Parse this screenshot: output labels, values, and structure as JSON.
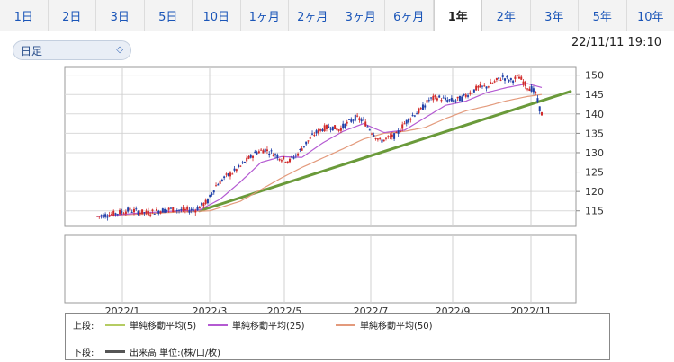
{
  "tabs": [
    {
      "label": "1日",
      "active": false
    },
    {
      "label": "2日",
      "active": false
    },
    {
      "label": "3日",
      "active": false
    },
    {
      "label": "5日",
      "active": false
    },
    {
      "label": "10日",
      "active": false
    },
    {
      "label": "1ヶ月",
      "active": false
    },
    {
      "label": "2ヶ月",
      "active": false
    },
    {
      "label": "3ヶ月",
      "active": false
    },
    {
      "label": "6ヶ月",
      "active": false
    },
    {
      "label": "1年",
      "active": true
    },
    {
      "label": "2年",
      "active": false
    },
    {
      "label": "3年",
      "active": false
    },
    {
      "label": "5年",
      "active": false
    },
    {
      "label": "10年",
      "active": false
    }
  ],
  "selector": {
    "value": "日足"
  },
  "timestamp": "22/11/11 19:10",
  "legend": {
    "upper_label": "上段:",
    "lower_label": "下段:",
    "items": [
      {
        "name": "単純移動平均(5)",
        "color": "#b5cc63"
      },
      {
        "name": "単純移動平均(25)",
        "color": "#b45ad2"
      },
      {
        "name": "単純移動平均(50)",
        "color": "#e39a7c"
      }
    ],
    "volume": {
      "name": "出来高 単位:(株/口/枚)",
      "color": "#555555"
    }
  },
  "chart_data": {
    "type": "line",
    "description_series": "candlestick price with moving averages",
    "x_ticks": [
      "2022/1",
      "2022/3",
      "2022/5",
      "2022/7",
      "2022/9",
      "2022/11"
    ],
    "y_ticks": [
      115,
      120,
      125,
      130,
      135,
      140,
      145,
      150
    ],
    "ylim": [
      111,
      152
    ],
    "price_keypoints": [
      [
        0,
        113.6
      ],
      [
        8,
        114.2
      ],
      [
        16,
        115.2
      ],
      [
        24,
        114.4
      ],
      [
        30,
        115.0
      ],
      [
        36,
        115.4
      ],
      [
        42,
        115.1
      ],
      [
        48,
        115.3
      ],
      [
        54,
        117.5
      ],
      [
        58,
        121.5
      ],
      [
        62,
        123.5
      ],
      [
        66,
        124.8
      ],
      [
        70,
        126.5
      ],
      [
        74,
        128.5
      ],
      [
        78,
        130.2
      ],
      [
        82,
        130.8
      ],
      [
        86,
        129.8
      ],
      [
        90,
        128.5
      ],
      [
        94,
        127.9
      ],
      [
        98,
        129.8
      ],
      [
        102,
        132.5
      ],
      [
        106,
        134.8
      ],
      [
        110,
        136.2
      ],
      [
        114,
        136.7
      ],
      [
        118,
        136.0
      ],
      [
        122,
        137.5
      ],
      [
        126,
        139.0
      ],
      [
        130,
        138.2
      ],
      [
        134,
        135.5
      ],
      [
        138,
        133.0
      ],
      [
        142,
        133.7
      ],
      [
        146,
        134.5
      ],
      [
        150,
        137.5
      ],
      [
        154,
        139.6
      ],
      [
        158,
        141.0
      ],
      [
        162,
        143.6
      ],
      [
        166,
        144.3
      ],
      [
        170,
        143.6
      ],
      [
        174,
        143.4
      ],
      [
        178,
        144.0
      ],
      [
        182,
        145.5
      ],
      [
        186,
        146.8
      ],
      [
        190,
        147.0
      ],
      [
        194,
        148.2
      ],
      [
        198,
        149.5
      ],
      [
        202,
        148.6
      ],
      [
        206,
        149.5
      ],
      [
        210,
        147.0
      ],
      [
        212,
        146.5
      ],
      [
        214,
        145.2
      ],
      [
        216,
        141.4
      ],
      [
        217,
        140.0
      ]
    ],
    "ma25_keypoints": [
      [
        0,
        113.5
      ],
      [
        20,
        114.4
      ],
      [
        40,
        115.0
      ],
      [
        50,
        115.2
      ],
      [
        60,
        118.0
      ],
      [
        70,
        122.5
      ],
      [
        80,
        127.5
      ],
      [
        90,
        129.0
      ],
      [
        100,
        128.8
      ],
      [
        110,
        132.5
      ],
      [
        120,
        135.5
      ],
      [
        130,
        137.5
      ],
      [
        140,
        135.2
      ],
      [
        150,
        135.8
      ],
      [
        160,
        139.0
      ],
      [
        170,
        142.2
      ],
      [
        180,
        143.3
      ],
      [
        190,
        145.5
      ],
      [
        200,
        146.8
      ],
      [
        210,
        147.8
      ],
      [
        217,
        146.8
      ]
    ],
    "ma50_keypoints": [
      [
        0,
        113.6
      ],
      [
        40,
        114.7
      ],
      [
        55,
        115.0
      ],
      [
        70,
        117.5
      ],
      [
        80,
        120.5
      ],
      [
        90,
        123.5
      ],
      [
        100,
        126.2
      ],
      [
        110,
        128.6
      ],
      [
        120,
        131.0
      ],
      [
        130,
        133.5
      ],
      [
        140,
        135.0
      ],
      [
        150,
        135.5
      ],
      [
        160,
        136.5
      ],
      [
        170,
        138.8
      ],
      [
        180,
        140.8
      ],
      [
        190,
        142.0
      ],
      [
        200,
        143.4
      ],
      [
        210,
        144.5
      ],
      [
        217,
        145.0
      ]
    ],
    "trendline": {
      "from": [
        50,
        115.0
      ],
      "to": [
        231,
        145.8
      ],
      "color": "#6a9a3a"
    },
    "candle_count": 218
  }
}
